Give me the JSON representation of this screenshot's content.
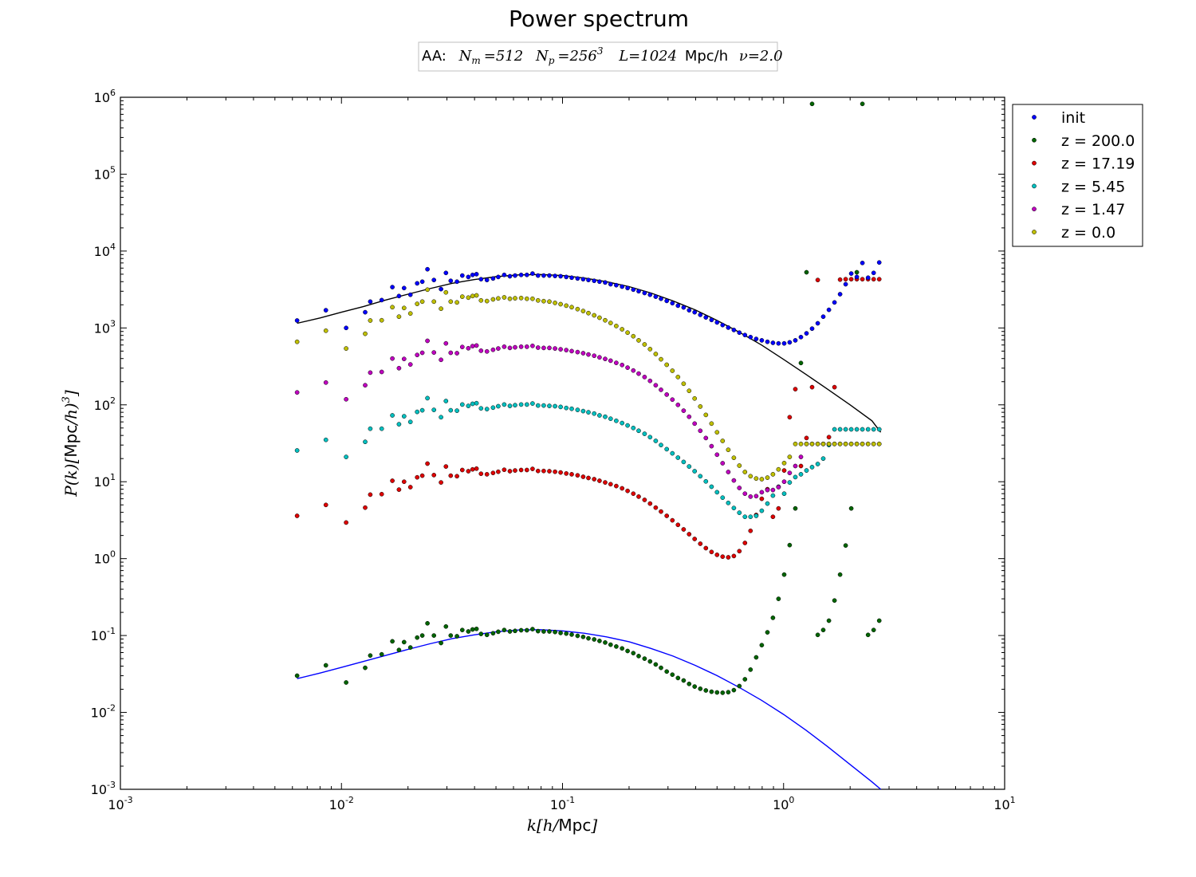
{
  "chart_data": {
    "type": "scatter",
    "title": "Power spectrum",
    "subtitle": {
      "prefix": "AA:",
      "Nm": "512",
      "Np_base": "256",
      "Np_exp": "3",
      "L": "1024",
      "L_unit": "Mpc/h",
      "nu": "2.0"
    },
    "xlabel": {
      "math": "k[h/",
      "unit": "Mpc",
      "close": "]"
    },
    "ylabel": {
      "math_left": "P(k)[",
      "unit": "Mpc",
      "math_right": "/h)",
      "exp": "3",
      "close": "]"
    },
    "xscale": "log",
    "yscale": "log",
    "xlim": [
      0.001,
      10
    ],
    "ylim": [
      0.001,
      1000000
    ],
    "x_ticks": [
      {
        "base": "10",
        "exp": "-3"
      },
      {
        "base": "10",
        "exp": "-2"
      },
      {
        "base": "10",
        "exp": "-1"
      },
      {
        "base": "10",
        "exp": "0"
      },
      {
        "base": "10",
        "exp": "1"
      }
    ],
    "y_ticks": [
      {
        "base": "10",
        "exp": "-3"
      },
      {
        "base": "10",
        "exp": "-2"
      },
      {
        "base": "10",
        "exp": "-1"
      },
      {
        "base": "10",
        "exp": "0"
      },
      {
        "base": "10",
        "exp": "1"
      },
      {
        "base": "10",
        "exp": "2"
      },
      {
        "base": "10",
        "exp": "3"
      },
      {
        "base": "10",
        "exp": "4"
      },
      {
        "base": "10",
        "exp": "5"
      },
      {
        "base": "10",
        "exp": "6"
      }
    ],
    "legend_position": "outside-right-top",
    "grid": false,
    "k_values": [
      0.0063,
      0.0085,
      0.0105,
      0.0128,
      0.0135,
      0.0152,
      0.017,
      0.0182,
      0.0192,
      0.0205,
      0.022,
      0.0232,
      0.0245,
      0.0262,
      0.0282,
      0.0297,
      0.0312,
      0.0333,
      0.0352,
      0.0375,
      0.0392,
      0.0408,
      0.0428,
      0.0455,
      0.0485,
      0.0512,
      0.0545,
      0.0578,
      0.061,
      0.065,
      0.069,
      0.0732,
      0.0775,
      0.0822,
      0.0872,
      0.0925,
      0.098,
      0.104,
      0.11,
      0.117,
      0.124,
      0.131,
      0.139,
      0.147,
      0.156,
      0.165,
      0.175,
      0.186,
      0.197,
      0.209,
      0.221,
      0.235,
      0.249,
      0.264,
      0.279,
      0.296,
      0.314,
      0.333,
      0.353,
      0.374,
      0.396,
      0.42,
      0.445,
      0.472,
      0.5,
      0.53,
      0.562,
      0.596,
      0.631,
      0.669,
      0.709,
      0.752,
      0.797,
      0.845,
      0.895,
      0.949,
      1.006,
      1.066,
      1.13,
      1.198,
      1.27,
      1.346,
      1.427,
      1.512,
      1.603,
      1.699,
      1.801,
      1.909,
      2.023,
      2.145,
      2.273,
      2.41,
      2.554,
      2.707
    ],
    "series": [
      {
        "name": "init",
        "color": "#0000ff",
        "values": [
          1250,
          1700,
          1000,
          1600,
          2200,
          2300,
          3400,
          2600,
          3300,
          2700,
          3800,
          4000,
          5800,
          4200,
          3200,
          5200,
          4100,
          4000,
          4800,
          4600,
          4900,
          5000,
          4300,
          4200,
          4400,
          4600,
          4900,
          4700,
          4800,
          4900,
          4900,
          5100,
          4800,
          4800,
          4800,
          4750,
          4700,
          4600,
          4500,
          4400,
          4300,
          4200,
          4100,
          4000,
          3900,
          3700,
          3600,
          3450,
          3300,
          3150,
          3000,
          2850,
          2700,
          2550,
          2400,
          2250,
          2100,
          1950,
          1850,
          1700,
          1600,
          1480,
          1370,
          1270,
          1180,
          1090,
          1010,
          940,
          870,
          810,
          760,
          720,
          690,
          660,
          640,
          630,
          630,
          650,
          690,
          760,
          850,
          980,
          1150,
          1400,
          1720,
          2150,
          2750,
          3700,
          5100,
          4600,
          7000,
          4500,
          5200,
          7100
        ]
      },
      {
        "name": "z = 200.0",
        "color": "#006400",
        "values": [
          0.03,
          0.041,
          0.0245,
          0.038,
          0.055,
          0.057,
          0.084,
          0.065,
          0.082,
          0.07,
          0.094,
          0.1,
          0.144,
          0.1,
          0.08,
          0.131,
          0.1,
          0.098,
          0.118,
          0.113,
          0.12,
          0.122,
          0.105,
          0.102,
          0.107,
          0.112,
          0.118,
          0.113,
          0.115,
          0.117,
          0.117,
          0.121,
          0.114,
          0.113,
          0.113,
          0.111,
          0.108,
          0.106,
          0.103,
          0.099,
          0.096,
          0.092,
          0.089,
          0.085,
          0.081,
          0.076,
          0.072,
          0.068,
          0.063,
          0.059,
          0.054,
          0.05,
          0.046,
          0.042,
          0.038,
          0.034,
          0.031,
          0.028,
          0.026,
          0.0235,
          0.0217,
          0.0203,
          0.0193,
          0.0186,
          0.0182,
          0.018,
          0.0183,
          0.0195,
          0.022,
          0.027,
          0.036,
          0.052,
          0.075,
          0.11,
          0.17,
          0.3,
          0.62,
          1.5,
          4.5,
          350,
          5300,
          820000,
          0.102,
          0.118,
          0.156,
          0.285,
          0.62,
          1.48,
          4.5,
          5300,
          820000,
          0.102,
          0.118,
          0.156
        ]
      },
      {
        "name": "z = 17.19",
        "color": "#dd0000",
        "values": [
          3.6,
          5.0,
          2.95,
          4.6,
          6.8,
          6.9,
          10.3,
          7.9,
          10.0,
          8.5,
          11.4,
          12.0,
          17.2,
          12.2,
          9.8,
          15.8,
          12.0,
          11.8,
          14.2,
          13.7,
          14.5,
          14.8,
          12.7,
          12.5,
          13.0,
          13.5,
          14.3,
          13.7,
          14.0,
          14.2,
          14.2,
          14.7,
          13.8,
          13.8,
          13.7,
          13.5,
          13.2,
          12.8,
          12.5,
          12.1,
          11.6,
          11.2,
          10.8,
          10.3,
          9.8,
          9.3,
          8.8,
          8.2,
          7.6,
          7.0,
          6.4,
          5.8,
          5.2,
          4.6,
          4.1,
          3.6,
          3.15,
          2.75,
          2.4,
          2.08,
          1.8,
          1.56,
          1.37,
          1.22,
          1.12,
          1.06,
          1.04,
          1.08,
          1.25,
          1.6,
          2.3,
          3.7,
          6.0,
          8.0,
          3.5,
          4.5,
          14.0,
          69,
          160,
          16,
          37,
          170,
          4200,
          31,
          38,
          170,
          4250,
          4300,
          4300,
          4300,
          4300,
          4300,
          4300,
          4300
        ]
      },
      {
        "name": "z = 5.45",
        "color": "#00bfbf",
        "values": [
          25.5,
          35,
          21,
          33,
          49,
          49,
          73,
          56,
          71,
          60,
          81,
          85,
          122,
          86,
          69,
          112,
          85,
          84,
          101,
          97,
          103,
          105,
          90,
          88,
          92,
          96,
          101,
          97,
          99,
          101,
          101,
          104,
          98,
          98,
          97,
          96,
          94,
          91,
          89,
          86,
          83,
          80,
          77,
          73,
          70,
          66,
          62,
          58,
          54,
          50,
          46,
          42,
          38,
          34,
          30,
          26.5,
          23.4,
          20.6,
          18.1,
          15.8,
          13.7,
          11.8,
          10.1,
          8.6,
          7.3,
          6.2,
          5.3,
          4.55,
          3.95,
          3.5,
          3.5,
          3.6,
          4.2,
          5.2,
          6.6,
          8.6,
          7.0,
          9.8,
          11.5,
          12.5,
          14.0,
          15.5,
          17.0,
          20.0,
          30.0,
          48.0,
          48.0,
          48.0,
          48.0,
          48.0,
          48.0,
          48.0,
          48.0,
          48.0
        ]
      },
      {
        "name": "z = 1.47",
        "color": "#bf00bf",
        "values": [
          145,
          195,
          118,
          180,
          262,
          268,
          400,
          300,
          395,
          335,
          445,
          475,
          680,
          480,
          385,
          630,
          475,
          470,
          565,
          545,
          580,
          590,
          505,
          495,
          520,
          540,
          570,
          550,
          560,
          570,
          570,
          585,
          555,
          550,
          550,
          540,
          528,
          515,
          500,
          485,
          470,
          452,
          435,
          415,
          395,
          375,
          352,
          330,
          305,
          280,
          255,
          230,
          205,
          180,
          157,
          136,
          117,
          100,
          84,
          70,
          57,
          46,
          37,
          29,
          22.5,
          17.4,
          13.4,
          10.4,
          8.3,
          7.0,
          6.4,
          6.5,
          7.3,
          7.8,
          7.8,
          8.5,
          10.0,
          13.0,
          16.0,
          21.0,
          31.0,
          31.0,
          31.0,
          31.0,
          31.0,
          31.0,
          31.0,
          31.0,
          31.0,
          31.0,
          31.0,
          31.0,
          31.0,
          31.0
        ]
      },
      {
        "name": "z = 0.0",
        "color": "#bfbf00",
        "values": [
          660,
          920,
          540,
          840,
          1250,
          1260,
          1860,
          1400,
          1820,
          1540,
          2060,
          2200,
          3150,
          2200,
          1780,
          2900,
          2200,
          2150,
          2550,
          2480,
          2600,
          2650,
          2280,
          2240,
          2350,
          2420,
          2500,
          2400,
          2430,
          2450,
          2400,
          2400,
          2280,
          2230,
          2200,
          2120,
          2040,
          1950,
          1860,
          1760,
          1660,
          1560,
          1460,
          1360,
          1260,
          1160,
          1060,
          960,
          870,
          780,
          690,
          610,
          530,
          458,
          392,
          332,
          278,
          230,
          188,
          152,
          121,
          95,
          74,
          57,
          44,
          34,
          26,
          20.5,
          16.2,
          13.4,
          11.8,
          11.0,
          10.8,
          11.3,
          12.5,
          14.5,
          17.5,
          21,
          31,
          31,
          31,
          31,
          31,
          31,
          31,
          31,
          31,
          31,
          31,
          31,
          31,
          31,
          31,
          31
        ]
      }
    ],
    "curves": [
      {
        "name": "",
        "color": "#000000",
        "k": [
          0.0063,
          0.008,
          0.01,
          0.0126,
          0.0158,
          0.02,
          0.0251,
          0.0316,
          0.0398,
          0.0501,
          0.0631,
          0.0794,
          0.1,
          0.126,
          0.158,
          0.2,
          0.251,
          0.316,
          0.398,
          0.501,
          0.631,
          0.794,
          1.0,
          1.26,
          1.58,
          2.0,
          2.51,
          2.75
        ],
        "values": [
          1150,
          1350,
          1600,
          1900,
          2300,
          2750,
          3250,
          3800,
          4250,
          4650,
          4900,
          4950,
          4800,
          4450,
          4000,
          3450,
          2850,
          2250,
          1720,
          1250,
          880,
          600,
          390,
          250,
          160,
          100,
          62,
          44
        ]
      },
      {
        "name": "",
        "color": "#0000ff",
        "k": [
          0.0063,
          0.008,
          0.01,
          0.0126,
          0.0158,
          0.02,
          0.0251,
          0.0316,
          0.0398,
          0.0501,
          0.0631,
          0.0794,
          0.1,
          0.126,
          0.158,
          0.2,
          0.251,
          0.316,
          0.398,
          0.501,
          0.631,
          0.794,
          1.0,
          1.26,
          1.58,
          2.0,
          2.51,
          2.75
        ],
        "values": [
          0.0275,
          0.0325,
          0.0385,
          0.046,
          0.055,
          0.066,
          0.078,
          0.091,
          0.102,
          0.112,
          0.118,
          0.119,
          0.115,
          0.107,
          0.096,
          0.083,
          0.068,
          0.054,
          0.041,
          0.03,
          0.0211,
          0.0144,
          0.0094,
          0.0059,
          0.0036,
          0.0021,
          0.00125,
          0.001
        ]
      }
    ]
  }
}
